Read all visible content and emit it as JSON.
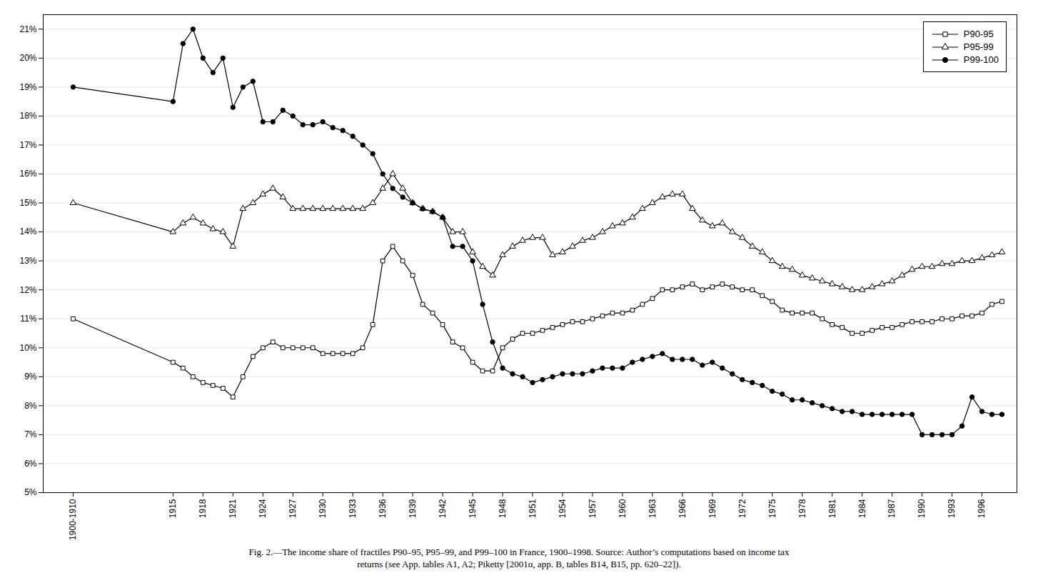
{
  "chart_data": {
    "type": "line",
    "caption": [
      "Fig. 2.—The income share of fractiles P90–95, P95–99, and P99–100 in France, 1900–1998. Source: Author’s computations based on income tax",
      "returns (see App. tables A1, A2; Piketty [2001α, app. B, tables B14, B15, pp. 620–22])."
    ],
    "x": [
      1905,
      1915,
      1916,
      1917,
      1918,
      1919,
      1920,
      1921,
      1922,
      1923,
      1924,
      1925,
      1926,
      1927,
      1928,
      1929,
      1930,
      1931,
      1932,
      1933,
      1934,
      1935,
      1936,
      1937,
      1938,
      1939,
      1940,
      1941,
      1942,
      1943,
      1944,
      1945,
      1946,
      1947,
      1948,
      1949,
      1950,
      1951,
      1952,
      1953,
      1954,
      1955,
      1956,
      1957,
      1958,
      1959,
      1960,
      1961,
      1962,
      1963,
      1964,
      1965,
      1966,
      1967,
      1968,
      1969,
      1970,
      1971,
      1972,
      1973,
      1974,
      1975,
      1976,
      1977,
      1978,
      1979,
      1980,
      1981,
      1982,
      1983,
      1984,
      1985,
      1986,
      1987,
      1988,
      1989,
      1990,
      1991,
      1992,
      1993,
      1994,
      1995,
      1996,
      1997,
      1998
    ],
    "series": [
      {
        "name": "P90-95",
        "color": "black",
        "marker": "open_square",
        "values": [
          0.11,
          0.095,
          0.093,
          0.09,
          0.088,
          0.087,
          0.086,
          0.083,
          0.09,
          0.097,
          0.1,
          0.102,
          0.1,
          0.1,
          0.1,
          0.1,
          0.098,
          0.098,
          0.098,
          0.098,
          0.1,
          0.108,
          0.13,
          0.135,
          0.13,
          0.125,
          0.115,
          0.112,
          0.108,
          0.102,
          0.1,
          0.095,
          0.092,
          0.092,
          0.1,
          0.103,
          0.105,
          0.105,
          0.106,
          0.107,
          0.108,
          0.109,
          0.109,
          0.11,
          0.111,
          0.112,
          0.112,
          0.113,
          0.115,
          0.117,
          0.12,
          0.12,
          0.121,
          0.122,
          0.12,
          0.121,
          0.122,
          0.121,
          0.12,
          0.12,
          0.118,
          0.116,
          0.113,
          0.112,
          0.112,
          0.112,
          0.11,
          0.108,
          0.107,
          0.105,
          0.105,
          0.106,
          0.107,
          0.107,
          0.108,
          0.109,
          0.109,
          0.109,
          0.11,
          0.11,
          0.111,
          0.111,
          0.112,
          0.115,
          0.116
        ]
      },
      {
        "name": "P95-99",
        "color": "black",
        "marker": "open_triangle",
        "values": [
          0.15,
          0.14,
          0.143,
          0.145,
          0.143,
          0.141,
          0.14,
          0.135,
          0.148,
          0.15,
          0.153,
          0.155,
          0.152,
          0.148,
          0.148,
          0.148,
          0.148,
          0.148,
          0.148,
          0.148,
          0.148,
          0.15,
          0.155,
          0.16,
          0.155,
          0.15,
          0.148,
          0.147,
          0.145,
          0.14,
          0.14,
          0.133,
          0.128,
          0.125,
          0.132,
          0.135,
          0.137,
          0.138,
          0.138,
          0.132,
          0.133,
          0.135,
          0.137,
          0.138,
          0.14,
          0.142,
          0.143,
          0.145,
          0.148,
          0.15,
          0.152,
          0.153,
          0.153,
          0.148,
          0.144,
          0.142,
          0.143,
          0.14,
          0.138,
          0.135,
          0.133,
          0.13,
          0.128,
          0.127,
          0.125,
          0.124,
          0.123,
          0.122,
          0.121,
          0.12,
          0.12,
          0.121,
          0.122,
          0.123,
          0.125,
          0.127,
          0.128,
          0.128,
          0.129,
          0.129,
          0.13,
          0.13,
          0.131,
          0.132,
          0.133
        ]
      },
      {
        "name": "P99-100",
        "color": "black",
        "marker": "circle",
        "values": [
          0.19,
          0.185,
          0.205,
          0.21,
          0.2,
          0.195,
          0.2,
          0.183,
          0.19,
          0.192,
          0.178,
          0.178,
          0.182,
          0.18,
          0.177,
          0.177,
          0.178,
          0.176,
          0.175,
          0.173,
          0.17,
          0.167,
          0.16,
          0.155,
          0.152,
          0.15,
          0.148,
          0.147,
          0.145,
          0.135,
          0.135,
          0.13,
          0.115,
          0.102,
          0.093,
          0.091,
          0.09,
          0.088,
          0.089,
          0.09,
          0.091,
          0.091,
          0.091,
          0.092,
          0.093,
          0.093,
          0.093,
          0.095,
          0.096,
          0.097,
          0.098,
          0.096,
          0.096,
          0.096,
          0.094,
          0.095,
          0.093,
          0.091,
          0.089,
          0.088,
          0.087,
          0.085,
          0.084,
          0.082,
          0.082,
          0.081,
          0.08,
          0.079,
          0.078,
          0.078,
          0.077,
          0.077,
          0.077,
          0.077,
          0.077,
          0.077,
          0.07,
          0.07,
          0.07,
          0.07,
          0.073,
          0.083,
          0.078,
          0.077,
          0.077
        ]
      }
    ],
    "xlim": [
      1902,
      1999.5
    ],
    "xticks": [
      {
        "value": 1905,
        "label": "1900-1910"
      },
      1915,
      1918,
      1921,
      1924,
      1927,
      1930,
      1933,
      1936,
      1939,
      1942,
      1945,
      1948,
      1951,
      1954,
      1957,
      1960,
      1963,
      1966,
      1969,
      1972,
      1975,
      1978,
      1981,
      1984,
      1987,
      1990,
      1993,
      1996
    ],
    "ylim": [
      0.05,
      0.215
    ],
    "yticks": [
      {
        "value": 0.05,
        "label": "5%"
      },
      {
        "value": 0.06,
        "label": "6%"
      },
      {
        "value": 0.07,
        "label": "7%"
      },
      {
        "value": 0.08,
        "label": "8%"
      },
      {
        "value": 0.09,
        "label": "9%"
      },
      {
        "value": 0.1,
        "label": "10%"
      },
      {
        "value": 0.11,
        "label": "11%"
      },
      {
        "value": 0.12,
        "label": "12%"
      },
      {
        "value": 0.13,
        "label": "13%"
      },
      {
        "value": 0.14,
        "label": "14%"
      },
      {
        "value": 0.15,
        "label": "15%"
      },
      {
        "value": 0.16,
        "label": "16%"
      },
      {
        "value": 0.17,
        "label": "17%"
      },
      {
        "value": 0.18,
        "label": "18%"
      },
      {
        "value": 0.19,
        "label": "19%"
      },
      {
        "value": 0.2,
        "label": "20%"
      },
      {
        "value": 0.21,
        "label": "21%"
      }
    ],
    "grid": "y",
    "legend": "upper right"
  }
}
